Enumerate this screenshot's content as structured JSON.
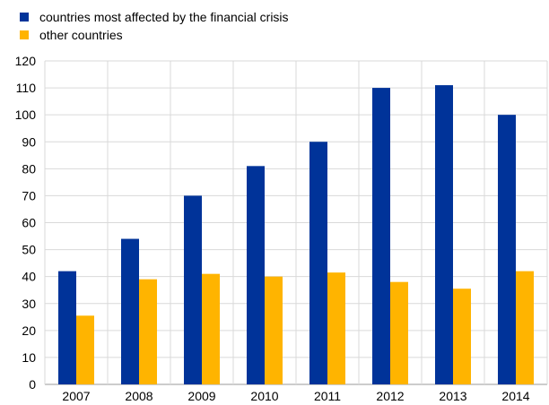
{
  "chart_data": {
    "type": "bar",
    "categories": [
      "2007",
      "2008",
      "2009",
      "2010",
      "2011",
      "2012",
      "2013",
      "2014"
    ],
    "series": [
      {
        "name": "countries most affected by the financial crisis",
        "color": "#003399",
        "values": [
          42,
          54,
          70,
          81,
          90,
          110,
          111,
          100
        ]
      },
      {
        "name": "other countries",
        "color": "#ffb400",
        "values": [
          25.5,
          39,
          41,
          40,
          41.5,
          38,
          35.5,
          42
        ]
      }
    ],
    "ylim": [
      0,
      120
    ],
    "yticks": [
      0,
      10,
      20,
      30,
      40,
      50,
      60,
      70,
      80,
      90,
      100,
      110,
      120
    ],
    "grid": true,
    "legend_position": "top-left",
    "title": "",
    "xlabel": "",
    "ylabel": ""
  }
}
